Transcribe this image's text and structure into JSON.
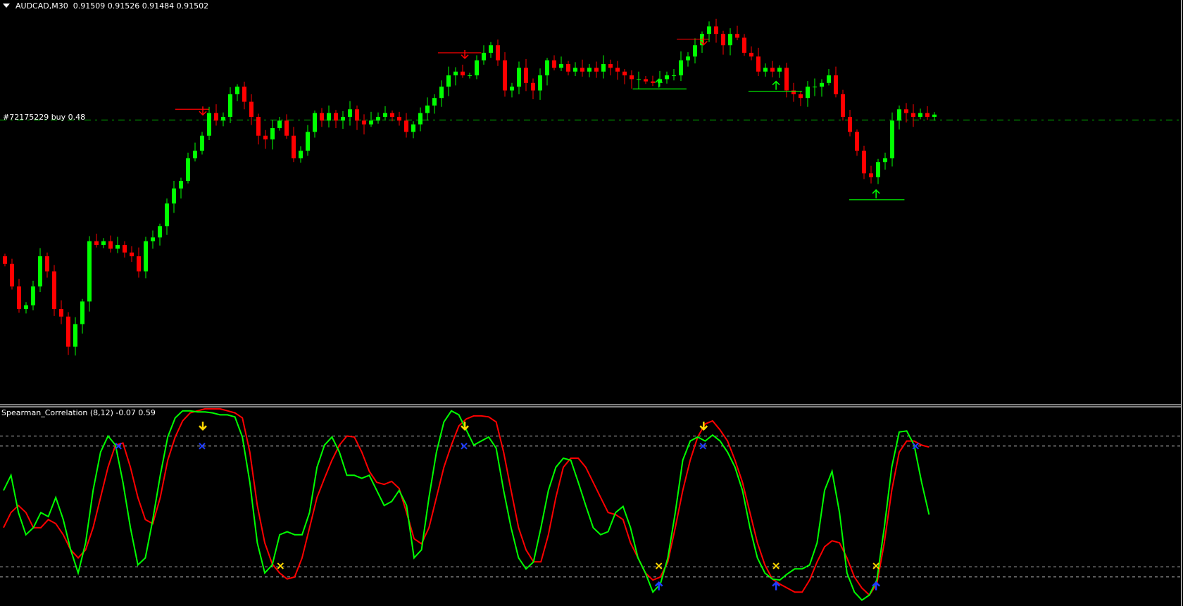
{
  "window": {
    "symbol_timeframe": "AUDCAD,M30",
    "ohlc": "0.91509 0.91526 0.91484 0.91502"
  },
  "order_line": {
    "label": "#72175229 buy 0.48",
    "price": 0.9148,
    "color": "#00c000"
  },
  "colors": {
    "bull": "#00ff00",
    "bear": "#ff0000",
    "fast_line": "#00ff00",
    "slow_line": "#ff0000",
    "level": "#c0c0c0",
    "signal_down": "#ffd700",
    "signal_cross_top": "#1e3cff",
    "signal_cross_bottom": "#ffd700",
    "signal_up": "#1e3cff"
  },
  "chart_data": [
    {
      "type": "candlestick",
      "closes": [
        0.90908,
        0.90818,
        0.90728,
        0.90743,
        0.90818,
        0.90938,
        0.90878,
        0.90728,
        0.90698,
        0.90578,
        0.90668,
        0.90758,
        0.90998,
        0.90983,
        0.90998,
        0.90968,
        0.90983,
        0.90953,
        0.90938,
        0.90878,
        0.90998,
        0.91013,
        0.91058,
        0.91148,
        0.91208,
        0.91238,
        0.91328,
        0.91358,
        0.91418,
        0.91508,
        0.91478,
        0.91493,
        0.91583,
        0.91613,
        0.91553,
        0.91493,
        0.91418,
        0.91403,
        0.91448,
        0.91478,
        0.91418,
        0.91328,
        0.91358,
        0.91433,
        0.91508,
        0.91478,
        0.91508,
        0.91478,
        0.91493,
        0.91523,
        0.91478,
        0.91463,
        0.91478,
        0.91493,
        0.91508,
        0.91493,
        0.91478,
        0.91433,
        0.91463,
        0.91508,
        0.91538,
        0.91568,
        0.91613,
        0.91658,
        0.91673,
        0.91658,
        0.91658,
        0.91718,
        0.91748,
        0.91778,
        0.91718,
        0.91598,
        0.91613,
        0.91688,
        0.91628,
        0.91598,
        0.91658,
        0.91718,
        0.91688,
        0.91703,
        0.91673,
        0.91688,
        0.91673,
        0.91688,
        0.91673,
        0.91703,
        0.91688,
        0.91673,
        0.91658,
        0.91643,
        0.91643,
        0.91634,
        0.91628,
        0.91643,
        0.91658,
        0.91658,
        0.91718,
        0.91733,
        0.91778,
        0.91823,
        0.91853,
        0.91823,
        0.91778,
        0.91823,
        0.91808,
        0.91748,
        0.91733,
        0.91673,
        0.91688,
        0.91673,
        0.91688,
        0.91598,
        0.91583,
        0.91568,
        0.91613,
        0.91613,
        0.91628,
        0.91658,
        0.91583,
        0.91493,
        0.91433,
        0.91358,
        0.91268,
        0.91253,
        0.91313,
        0.91328,
        0.91478,
        0.91523,
        0.91508,
        0.91493,
        0.91508,
        0.91493,
        0.91502
      ],
      "markers": [
        {
          "kind": "sell-level",
          "bar": 26.7,
          "from": 23,
          "to": 27.5,
          "price": 0.91523
        },
        {
          "kind": "sell-level",
          "bar": 61.8,
          "from": 58.2,
          "to": 64,
          "price": 0.91748
        },
        {
          "kind": "sell-level",
          "bar": 93.8,
          "from": 90.2,
          "to": 94.5,
          "price": 0.91802
        },
        {
          "kind": "buy-level",
          "bar": 87.8,
          "from": 84.3,
          "to": 91.5,
          "price": 0.91604
        },
        {
          "kind": "buy-level",
          "bar": 103.5,
          "from": 99.8,
          "to": 107,
          "price": 0.91595
        },
        {
          "kind": "buy-level",
          "bar": 116.9,
          "from": 113.3,
          "to": 120.7,
          "price": 0.91163
        }
      ]
    },
    {
      "type": "line",
      "title": "Spearman_Correlation (8,12) -0.07 0.59",
      "ylim": [
        -1,
        1
      ],
      "levels": [
        0.7,
        0.6,
        -0.6,
        -0.7
      ],
      "series": [
        {
          "values": [
            0.16,
            0.31,
            -0.06,
            -0.28,
            -0.21,
            -0.06,
            -0.1,
            0.09,
            -0.13,
            -0.43,
            -0.66,
            -0.36,
            0.16,
            0.54,
            0.7,
            0.61,
            0.24,
            -0.21,
            -0.58,
            -0.51,
            -0.13,
            0.31,
            0.69,
            0.88,
            0.95,
            0.95,
            0.94,
            0.94,
            0.93,
            0.91,
            0.91,
            0.89,
            0.69,
            0.24,
            -0.36,
            -0.66,
            -0.58,
            -0.28,
            -0.25,
            -0.28,
            -0.28,
            -0.06,
            0.39,
            0.61,
            0.69,
            0.54,
            0.31,
            0.31,
            0.28,
            0.31,
            0.16,
            0.01,
            0.05,
            0.16,
            0.01,
            -0.51,
            -0.43,
            0.09,
            0.54,
            0.84,
            0.95,
            0.91,
            0.76,
            0.61,
            0.65,
            0.69,
            0.58,
            0.16,
            -0.21,
            -0.51,
            -0.62,
            -0.55,
            -0.21,
            0.16,
            0.39,
            0.48,
            0.46,
            0.24,
            0.01,
            -0.21,
            -0.28,
            -0.25,
            -0.06,
            0.0,
            -0.21,
            -0.51,
            -0.66,
            -0.85,
            -0.77,
            -0.51,
            -0.06,
            0.46,
            0.65,
            0.69,
            0.65,
            0.71,
            0.65,
            0.54,
            0.39,
            0.16,
            -0.21,
            -0.51,
            -0.66,
            -0.72,
            -0.73,
            -0.67,
            -0.62,
            -0.62,
            -0.58,
            -0.36,
            0.16,
            0.35,
            -0.06,
            -0.66,
            -0.85,
            -0.93,
            -0.88,
            -0.73,
            -0.21,
            0.39,
            0.74,
            0.75,
            0.61,
            0.24,
            -0.08
          ]
        },
        {
          "values": [
            -0.21,
            -0.06,
            0.01,
            -0.06,
            -0.21,
            -0.21,
            -0.13,
            -0.17,
            -0.28,
            -0.43,
            -0.51,
            -0.43,
            -0.21,
            0.09,
            0.39,
            0.61,
            0.63,
            0.39,
            0.09,
            -0.13,
            -0.17,
            0.09,
            0.46,
            0.69,
            0.85,
            0.93,
            0.95,
            0.97,
            0.97,
            0.97,
            0.95,
            0.93,
            0.88,
            0.54,
            0.01,
            -0.36,
            -0.57,
            -0.66,
            -0.72,
            -0.7,
            -0.51,
            -0.21,
            0.09,
            0.28,
            0.46,
            0.61,
            0.7,
            0.69,
            0.54,
            0.35,
            0.24,
            0.22,
            0.25,
            0.18,
            -0.06,
            -0.32,
            -0.37,
            -0.21,
            0.09,
            0.39,
            0.61,
            0.8,
            0.87,
            0.9,
            0.9,
            0.89,
            0.84,
            0.54,
            0.16,
            -0.21,
            -0.43,
            -0.55,
            -0.55,
            -0.28,
            0.09,
            0.39,
            0.48,
            0.48,
            0.39,
            0.24,
            0.09,
            -0.06,
            -0.08,
            -0.13,
            -0.36,
            -0.51,
            -0.66,
            -0.73,
            -0.7,
            -0.55,
            -0.21,
            0.16,
            0.46,
            0.69,
            0.82,
            0.85,
            0.76,
            0.65,
            0.46,
            0.24,
            -0.06,
            -0.36,
            -0.58,
            -0.72,
            -0.77,
            -0.81,
            -0.85,
            -0.85,
            -0.73,
            -0.55,
            -0.4,
            -0.34,
            -0.36,
            -0.51,
            -0.7,
            -0.81,
            -0.88,
            -0.77,
            -0.36,
            0.16,
            0.54,
            0.65,
            0.65,
            0.61,
            0.59
          ]
        }
      ],
      "signals": [
        {
          "kind": "down-arrow",
          "bar": 26.7,
          "value": 0.8
        },
        {
          "kind": "down-arrow",
          "bar": 61.8,
          "value": 0.8
        },
        {
          "kind": "down-arrow",
          "bar": 93.8,
          "value": 0.8
        },
        {
          "kind": "cross-top",
          "bar": 15.4,
          "value": 0.6
        },
        {
          "kind": "cross-top",
          "bar": 26.6,
          "value": 0.6
        },
        {
          "kind": "cross-top",
          "bar": 61.7,
          "value": 0.6
        },
        {
          "kind": "cross-top",
          "bar": 93.7,
          "value": 0.6
        },
        {
          "kind": "cross-top",
          "bar": 122.2,
          "value": 0.6
        },
        {
          "kind": "cross-bottom",
          "bar": 37.1,
          "value": -0.59
        },
        {
          "kind": "cross-bottom",
          "bar": 87.8,
          "value": -0.59
        },
        {
          "kind": "cross-bottom",
          "bar": 103.5,
          "value": -0.59
        },
        {
          "kind": "cross-bottom",
          "bar": 116.9,
          "value": -0.59
        },
        {
          "kind": "up-arrow",
          "bar": 87.8,
          "value": -0.79
        },
        {
          "kind": "up-arrow",
          "bar": 103.5,
          "value": -0.79
        },
        {
          "kind": "up-arrow",
          "bar": 116.9,
          "value": -0.79
        }
      ]
    }
  ]
}
